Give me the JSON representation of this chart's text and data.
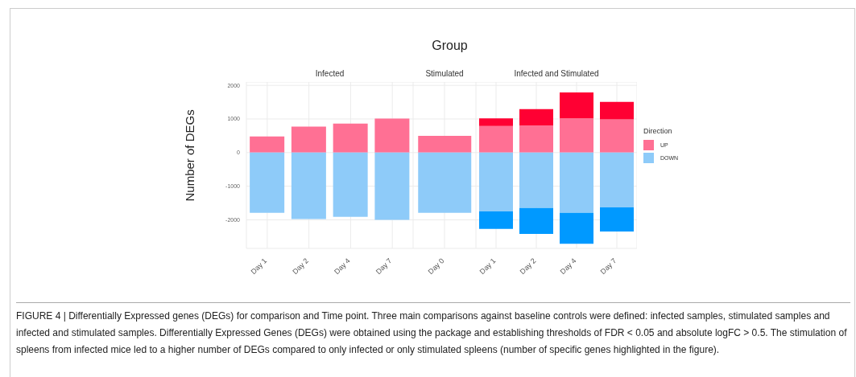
{
  "chart_data": [
    {
      "type": "bar",
      "title": "Infected",
      "ylabel": "Number of DEGs",
      "annotations": [
        "Group",
        "FIGURE 4 | Differentially Expressed genes (DEGs) for comparison and Time point. Three main comparisons against baseline controls were defined: infected samples, stimulated samples and infected and stimulated samples. Differentially Expressed Genes (DEGs) were obtained using the package and establishing thresholds of FDR < 0.05 and absolute logFC > 0.5. The stimulation of spleens from infected mice led to a higher number of DEGs compared to only infected or only stimulated spleens (number of specific genes highlighted in the figure)."
      ],
      "categories": [
        "Day 1",
        "Day 2",
        "Day 4",
        "Day 7"
      ],
      "stacked": true,
      "ylim": [
        -2850,
        2100
      ],
      "yticks": [
        -2000,
        -1000,
        0,
        1000,
        2000
      ],
      "grid": true,
      "series": [
        {
          "color": "#ff7094",
          "values": [
            480,
            770,
            860,
            1010
          ]
        },
        {
          "color": "#8ecbf9",
          "values": [
            -1790,
            -1980,
            -1910,
            -2000
          ]
        }
      ]
    },
    {
      "type": "bar",
      "title": "Stimulated",
      "categories": [
        "Day 0"
      ],
      "stacked": true,
      "ylim": [
        -2850,
        2100
      ],
      "yticks": [
        -2000,
        -1000,
        0,
        1000,
        2000
      ],
      "grid": true,
      "tick_labels": "x",
      "series": [
        {
          "color": "#ff7094",
          "values": [
            500
          ]
        },
        {
          "color": "#8ecbf9",
          "values": [
            -1790
          ]
        }
      ]
    },
    {
      "type": "bar",
      "title": "Infected and Stimulated",
      "legend_title": "Direction",
      "legend": "right",
      "categories": [
        "Day 1",
        "Day 2",
        "Day 4",
        "Day 7"
      ],
      "stacked": true,
      "ylim": [
        -2850,
        2100
      ],
      "yticks": [
        -2000,
        -1000,
        0,
        1000,
        2000
      ],
      "grid": true,
      "tick_labels": "x",
      "series": [
        {
          "name": "UP",
          "color": "#ff7094",
          "values": [
            790,
            810,
            1020,
            990
          ]
        },
        {
          "color": "#ff0033",
          "values": [
            230,
            480,
            770,
            520
          ]
        },
        {
          "name": "DOWN",
          "color": "#8ecbf9",
          "values": [
            -1750,
            -1650,
            -1790,
            -1630
          ]
        },
        {
          "color": "#0099ff",
          "values": [
            -520,
            -770,
            -920,
            -720
          ]
        }
      ]
    }
  ]
}
